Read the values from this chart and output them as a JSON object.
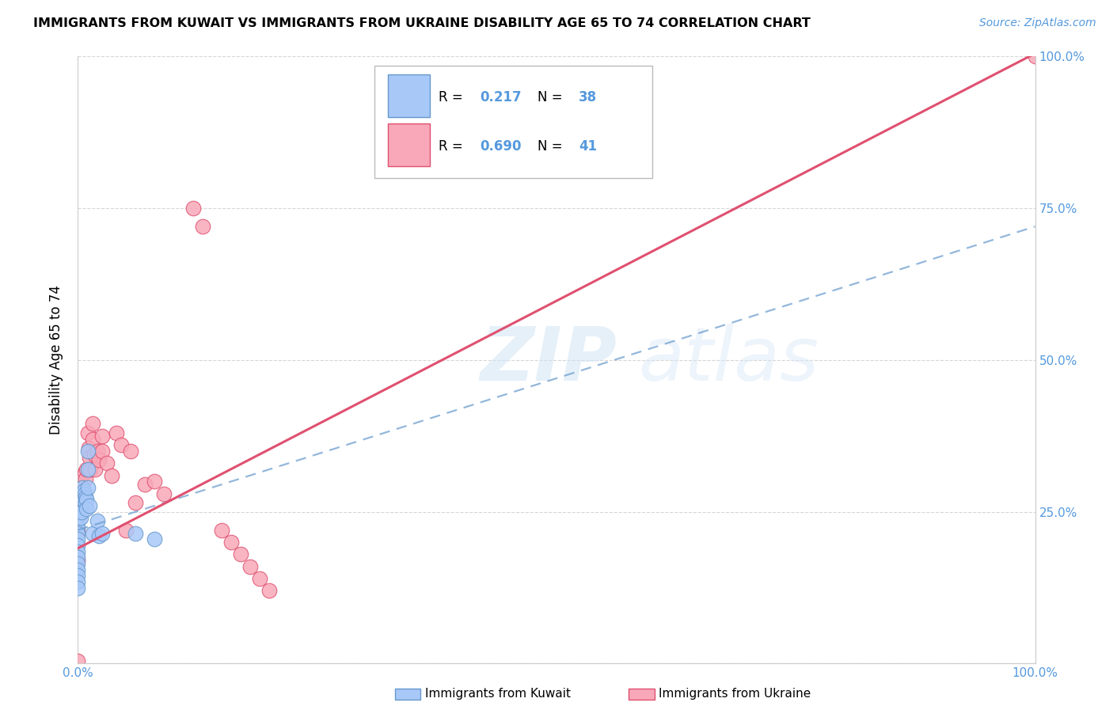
{
  "title": "IMMIGRANTS FROM KUWAIT VS IMMIGRANTS FROM UKRAINE DISABILITY AGE 65 TO 74 CORRELATION CHART",
  "source": "Source: ZipAtlas.com",
  "ylabel": "Disability Age 65 to 74",
  "xlim": [
    0,
    1.0
  ],
  "ylim": [
    0,
    1.0
  ],
  "kuwait_color": "#a8c8f8",
  "ukraine_color": "#f8a8b8",
  "kuwait_R": 0.217,
  "kuwait_N": 38,
  "ukraine_R": 0.69,
  "ukraine_N": 41,
  "kuwait_line_color": "#6699cc",
  "ukraine_line_color": "#e05070",
  "watermark_zip": "ZIP",
  "watermark_atlas": "atlas",
  "kuwait_points_x": [
    0.0,
    0.0,
    0.0,
    0.0,
    0.0,
    0.0,
    0.0,
    0.0,
    0.0,
    0.0,
    0.0,
    0.0,
    0.0,
    0.0,
    0.0,
    0.003,
    0.003,
    0.003,
    0.004,
    0.004,
    0.005,
    0.005,
    0.006,
    0.007,
    0.008,
    0.008,
    0.009,
    0.009,
    0.01,
    0.01,
    0.01,
    0.012,
    0.015,
    0.02,
    0.022,
    0.025,
    0.06,
    0.08
  ],
  "kuwait_points_y": [
    0.265,
    0.255,
    0.245,
    0.235,
    0.225,
    0.215,
    0.205,
    0.195,
    0.185,
    0.175,
    0.165,
    0.155,
    0.145,
    0.135,
    0.125,
    0.28,
    0.26,
    0.24,
    0.27,
    0.25,
    0.29,
    0.27,
    0.285,
    0.28,
    0.275,
    0.265,
    0.27,
    0.255,
    0.35,
    0.32,
    0.29,
    0.26,
    0.215,
    0.235,
    0.21,
    0.215,
    0.215,
    0.205
  ],
  "ukraine_points_x": [
    0.0,
    0.0,
    0.0,
    0.003,
    0.004,
    0.005,
    0.006,
    0.007,
    0.008,
    0.009,
    0.01,
    0.011,
    0.012,
    0.013,
    0.015,
    0.015,
    0.017,
    0.018,
    0.02,
    0.022,
    0.025,
    0.025,
    0.03,
    0.035,
    0.04,
    0.045,
    0.05,
    0.055,
    0.06,
    0.07,
    0.08,
    0.09,
    0.12,
    0.13,
    0.15,
    0.16,
    0.17,
    0.18,
    0.19,
    0.2,
    1.0
  ],
  "ukraine_points_y": [
    0.22,
    0.17,
    0.005,
    0.26,
    0.25,
    0.29,
    0.28,
    0.315,
    0.305,
    0.32,
    0.38,
    0.355,
    0.34,
    0.32,
    0.395,
    0.37,
    0.345,
    0.32,
    0.35,
    0.335,
    0.375,
    0.35,
    0.33,
    0.31,
    0.38,
    0.36,
    0.22,
    0.35,
    0.265,
    0.295,
    0.3,
    0.28,
    0.75,
    0.72,
    0.22,
    0.2,
    0.18,
    0.16,
    0.14,
    0.12,
    1.0
  ],
  "ukraine_line_x0": 0.0,
  "ukraine_line_y0": 0.19,
  "ukraine_line_x1": 1.0,
  "ukraine_line_y1": 1.005,
  "kuwait_line_x0": 0.0,
  "kuwait_line_y0": 0.22,
  "kuwait_line_x1": 1.0,
  "kuwait_line_y1": 0.72
}
